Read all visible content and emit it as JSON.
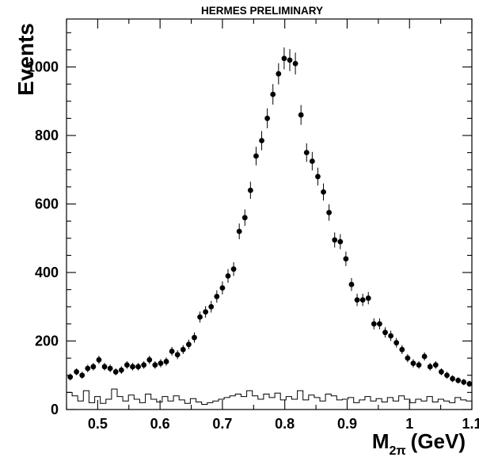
{
  "chart_data": {
    "type": "scatter",
    "title": "HERMES PRELIMINARY",
    "ylabel": "Events",
    "xlabel": {
      "main": "M",
      "sub": "2π",
      "unit": "(GeV)"
    },
    "xlim": [
      0.45,
      1.1
    ],
    "ylim": [
      0,
      1140
    ],
    "xticks": [
      0.5,
      0.6,
      0.7,
      0.8,
      0.9,
      1.0,
      1.1
    ],
    "xtick_labels": [
      "0.5",
      "0.6",
      "0.7",
      "0.8",
      "0.9",
      "1",
      "1.1"
    ],
    "yticks": [
      0,
      200,
      400,
      600,
      800,
      1000
    ],
    "ytick_labels": [
      "0",
      "200",
      "400",
      "600",
      "800",
      "1000"
    ],
    "grid": false,
    "series": [
      {
        "kind": "points-with-errors",
        "x": [
          0.456,
          0.466,
          0.475,
          0.484,
          0.493,
          0.502,
          0.511,
          0.52,
          0.529,
          0.538,
          0.547,
          0.556,
          0.565,
          0.574,
          0.583,
          0.592,
          0.601,
          0.61,
          0.619,
          0.628,
          0.637,
          0.646,
          0.655,
          0.664,
          0.673,
          0.682,
          0.691,
          0.7,
          0.709,
          0.718,
          0.727,
          0.736,
          0.745,
          0.754,
          0.763,
          0.772,
          0.781,
          0.79,
          0.799,
          0.808,
          0.817,
          0.826,
          0.835,
          0.844,
          0.853,
          0.862,
          0.871,
          0.88,
          0.889,
          0.898,
          0.907,
          0.916,
          0.925,
          0.934,
          0.943,
          0.952,
          0.961,
          0.97,
          0.979,
          0.988,
          0.997,
          1.006,
          1.015,
          1.024,
          1.033,
          1.042,
          1.051,
          1.06,
          1.069,
          1.078,
          1.087,
          1.096
        ],
        "y": [
          95,
          110,
          100,
          120,
          125,
          145,
          125,
          120,
          110,
          115,
          130,
          125,
          125,
          130,
          145,
          130,
          135,
          140,
          170,
          160,
          175,
          190,
          210,
          270,
          285,
          300,
          330,
          355,
          390,
          410,
          520,
          560,
          640,
          740,
          785,
          850,
          920,
          980,
          1025,
          1020,
          1010,
          860,
          750,
          725,
          680,
          635,
          575,
          495,
          490,
          440,
          365,
          320,
          320,
          325,
          250,
          250,
          225,
          215,
          195,
          175,
          150,
          135,
          130,
          155,
          125,
          130,
          110,
          100,
          90,
          85,
          80,
          75
        ],
        "err": [
          10,
          10,
          10,
          11,
          11,
          12,
          11,
          11,
          10,
          11,
          11,
          11,
          11,
          11,
          12,
          11,
          12,
          12,
          13,
          13,
          13,
          14,
          15,
          16,
          17,
          17,
          18,
          19,
          20,
          20,
          23,
          24,
          25,
          27,
          28,
          29,
          30,
          31,
          32,
          32,
          32,
          29,
          27,
          27,
          26,
          25,
          24,
          22,
          22,
          21,
          19,
          18,
          18,
          18,
          16,
          16,
          15,
          15,
          14,
          13,
          12,
          12,
          11,
          12,
          11,
          11,
          10,
          10,
          10,
          9,
          9,
          9
        ]
      },
      {
        "kind": "histogram",
        "values": [
          50,
          40,
          25,
          55,
          20,
          38,
          18,
          30,
          60,
          38,
          25,
          42,
          30,
          20,
          45,
          30,
          22,
          38,
          25,
          40,
          28,
          18,
          32,
          22,
          15,
          20,
          25,
          30,
          35,
          40,
          45,
          38,
          55,
          40,
          30,
          45,
          35,
          48,
          28,
          38,
          30,
          55,
          28,
          42,
          35,
          25,
          45,
          40,
          28,
          30,
          35,
          20,
          28,
          38,
          25,
          32,
          22,
          35,
          25,
          40,
          30,
          20,
          30,
          25,
          38,
          22,
          30,
          25,
          20,
          35,
          28,
          25
        ]
      }
    ]
  }
}
